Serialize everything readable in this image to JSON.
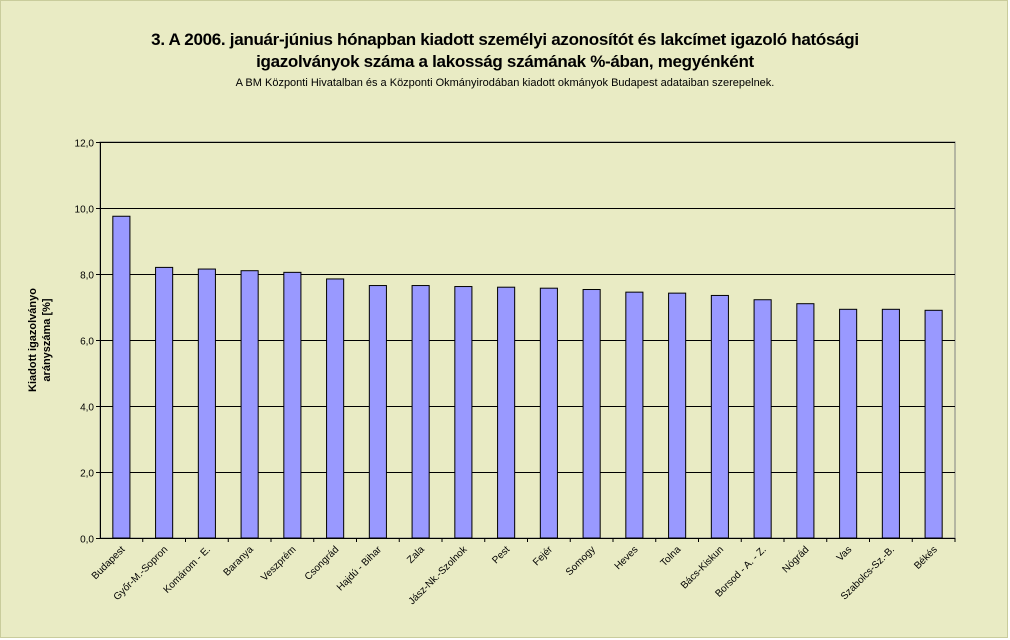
{
  "chart_data": {
    "type": "bar",
    "title": "3. A 2006. január-június hónapban kiadott személyi azonosítót és lakcímet igazoló hatósági",
    "title_line2": "igazolványok száma a lakosság  számának %-ában, megyénként",
    "subtitle": "A BM Központi Hivatalban és a Központi Okmányirodában kiadott okmányok Budapest adataiban szerepelnek.",
    "ylabel_line1": "Kiadott igazolványo",
    "ylabel_line2": "arányszáma [%]",
    "ylim": [
      0,
      12
    ],
    "yticks": [
      "0,0",
      "2,0",
      "4,0",
      "6,0",
      "8,0",
      "10,0",
      "12,0"
    ],
    "grid": true,
    "categories": [
      "Budapest",
      "Győr-M.-Sopron",
      "Komárom - E.",
      "Baranya",
      "Veszprém",
      "Csongrád",
      "Hajdú - Bihar",
      "Zala",
      "Jász-Nk.-Szolnok",
      "Pest",
      "Fejér",
      "Somogy",
      "Heves",
      "Tolna",
      "Bács-Kiskun",
      "Borsod - A. - Z.",
      "Nógrád",
      "Vas",
      "Szabolcs-Sz.-B.",
      "Békés"
    ],
    "values": [
      9.75,
      8.2,
      8.15,
      8.1,
      8.05,
      7.85,
      7.65,
      7.65,
      7.62,
      7.6,
      7.57,
      7.53,
      7.45,
      7.42,
      7.35,
      7.22,
      7.1,
      6.93,
      6.93,
      6.9
    ],
    "colors": {
      "bar": "#9999ff",
      "bar_stroke": "#000000",
      "plot_bg": "#e9ebc4",
      "grid": "#000000"
    }
  }
}
